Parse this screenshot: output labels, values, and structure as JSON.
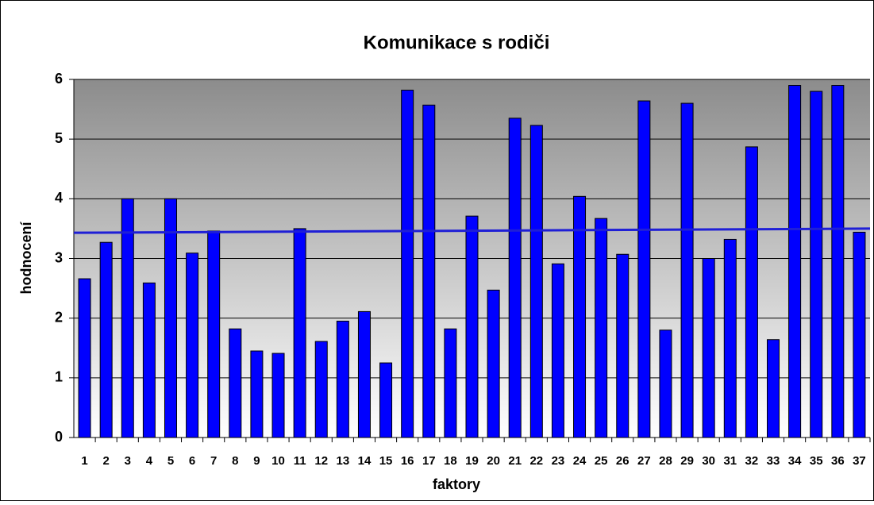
{
  "chart_data": {
    "type": "bar",
    "title": "Komunikace s rodiči",
    "x_label": "faktory",
    "y_label": "hodnocení",
    "categories": [
      "1",
      "2",
      "3",
      "4",
      "5",
      "6",
      "7",
      "8",
      "9",
      "10",
      "11",
      "12",
      "13",
      "14",
      "15",
      "16",
      "17",
      "18",
      "19",
      "20",
      "21",
      "22",
      "23",
      "24",
      "25",
      "26",
      "27",
      "28",
      "29",
      "30",
      "31",
      "32",
      "33",
      "34",
      "35",
      "36",
      "37"
    ],
    "values": [
      2.66,
      3.27,
      4.0,
      2.59,
      4.0,
      3.09,
      3.46,
      1.82,
      1.45,
      1.41,
      3.5,
      1.61,
      1.95,
      2.11,
      1.25,
      5.82,
      5.57,
      1.82,
      3.71,
      2.47,
      5.35,
      5.23,
      2.91,
      4.04,
      3.67,
      3.07,
      5.64,
      1.8,
      5.6,
      3.0,
      3.32,
      4.87,
      1.64,
      5.9,
      5.8,
      5.9,
      3.44
    ],
    "color": "#0000ff",
    "trendline": [
      3.43,
      3.5
    ],
    "trendline_color": "#1f1fd6",
    "ylim": [
      0,
      6
    ],
    "yticks": [
      0,
      1,
      2,
      3,
      4,
      5,
      6
    ],
    "grid": true
  }
}
